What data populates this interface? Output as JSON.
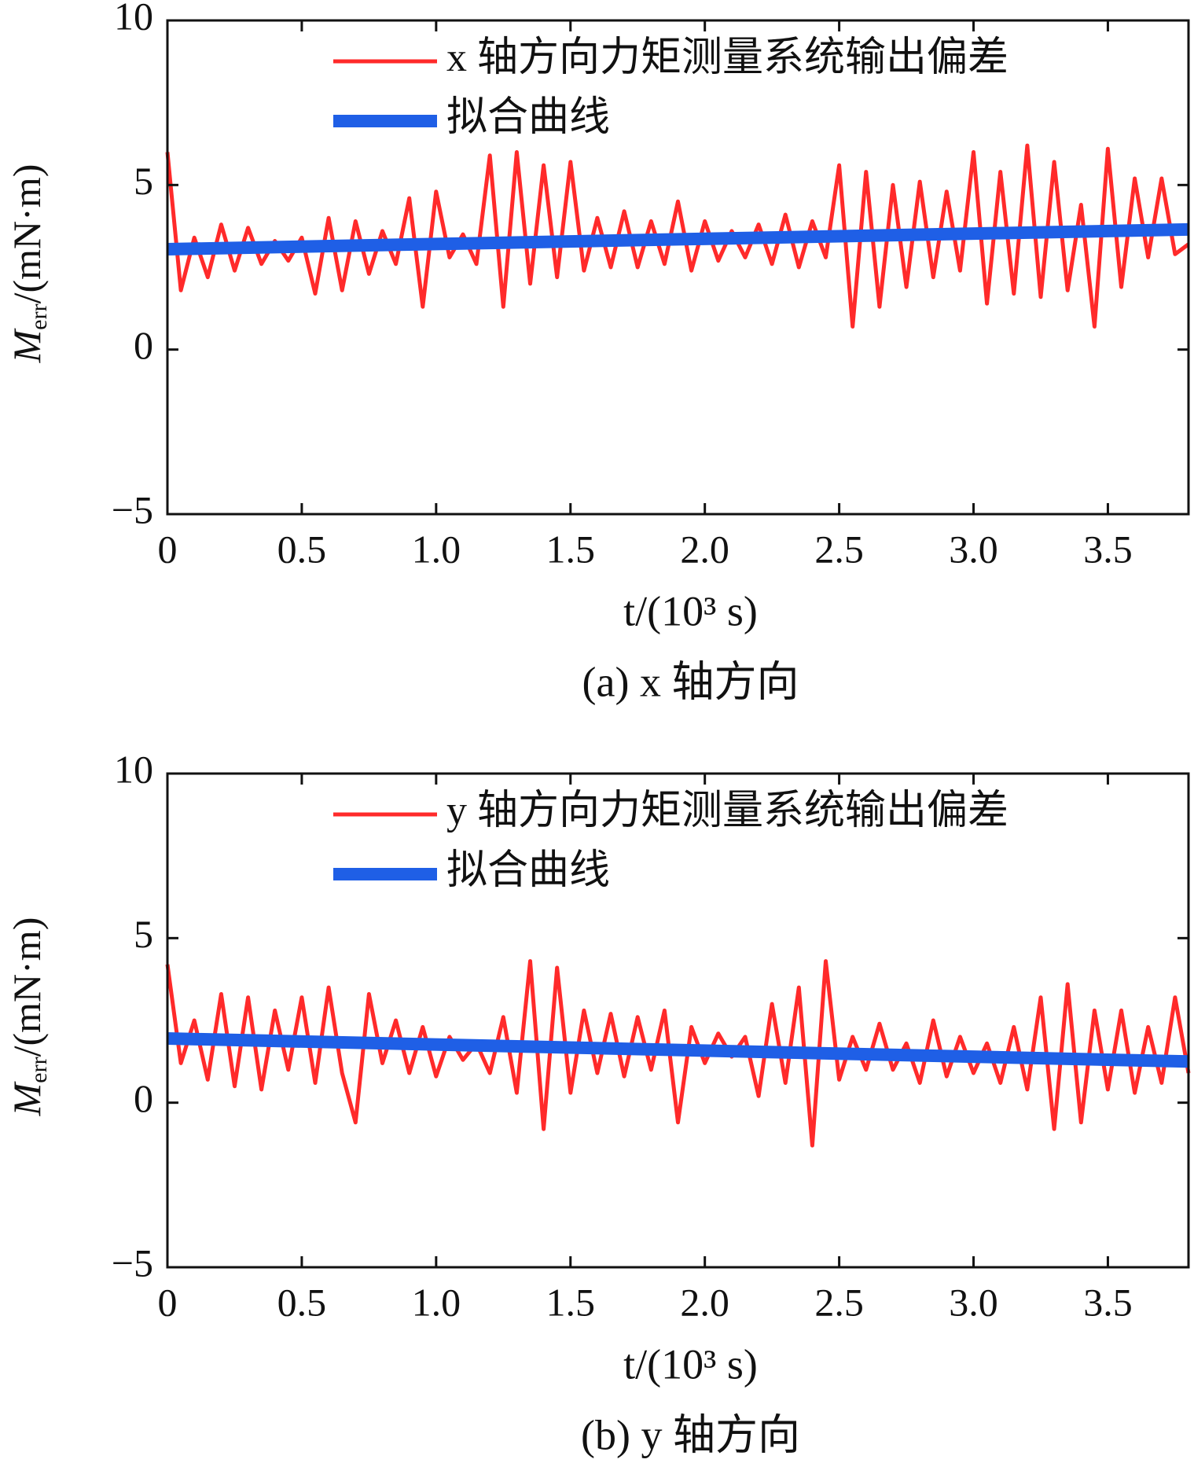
{
  "chart_data": [
    {
      "type": "line",
      "caption": "(a) x 轴方向",
      "xlabel": "t/(10³ s)",
      "ylabel": {
        "symbol": "M",
        "subscript": "err",
        "unit": "/(mN·m)"
      },
      "xlim": [
        0,
        3.8
      ],
      "ylim": [
        -5,
        10
      ],
      "xticks": [
        0,
        0.5,
        {
          "value": 1,
          "label": "1.0"
        },
        1.5,
        {
          "value": 2,
          "label": "2.0"
        },
        2.5,
        {
          "value": 3,
          "label": "3.0"
        },
        3.5
      ],
      "yticks": [
        {
          "value": -5,
          "label": "−5"
        },
        0,
        5,
        10
      ],
      "series": [
        {
          "name": "x 轴方向力矩测量系统输出偏差",
          "color": "#ff2a2a",
          "width": 5,
          "x": [
            0,
            0.05,
            0.1,
            0.15,
            0.2,
            0.25,
            0.3,
            0.35,
            0.4,
            0.45,
            0.5,
            0.55,
            0.6,
            0.65,
            0.7,
            0.75,
            0.8,
            0.85,
            0.9,
            0.95,
            1,
            1.05,
            1.1,
            1.15,
            1.2,
            1.25,
            1.3,
            1.35,
            1.4,
            1.45,
            1.5,
            1.55,
            1.6,
            1.65,
            1.7,
            1.75,
            1.8,
            1.85,
            1.9,
            1.95,
            2,
            2.05,
            2.1,
            2.15,
            2.2,
            2.25,
            2.3,
            2.35,
            2.4,
            2.45,
            2.5,
            2.55,
            2.6,
            2.65,
            2.7,
            2.75,
            2.8,
            2.85,
            2.9,
            2.95,
            3,
            3.05,
            3.1,
            3.15,
            3.2,
            3.25,
            3.3,
            3.35,
            3.4,
            3.45,
            3.5,
            3.55,
            3.6,
            3.65,
            3.7,
            3.75,
            3.8
          ],
          "values": [
            6.0,
            1.8,
            3.4,
            2.2,
            3.8,
            2.4,
            3.7,
            2.6,
            3.3,
            2.7,
            3.4,
            1.7,
            4.0,
            1.8,
            3.9,
            2.3,
            3.6,
            2.6,
            4.6,
            1.3,
            4.8,
            2.8,
            3.5,
            2.6,
            5.9,
            1.3,
            6.0,
            2.0,
            5.6,
            2.2,
            5.7,
            2.4,
            4.0,
            2.5,
            4.2,
            2.5,
            3.9,
            2.6,
            4.5,
            2.4,
            3.9,
            2.7,
            3.6,
            2.8,
            3.8,
            2.6,
            4.1,
            2.5,
            3.9,
            2.8,
            5.6,
            0.7,
            5.4,
            1.3,
            5.0,
            1.9,
            5.1,
            2.2,
            4.8,
            2.4,
            6.0,
            1.4,
            5.4,
            1.7,
            6.2,
            1.6,
            5.7,
            1.8,
            4.4,
            0.7,
            6.1,
            1.9,
            5.2,
            2.8,
            5.2,
            2.9,
            3.2
          ]
        },
        {
          "name": "拟合曲线",
          "color": "#1f5fe6",
          "width": 16,
          "x": [
            0,
            3.8
          ],
          "values": [
            3.05,
            3.65
          ]
        }
      ]
    },
    {
      "type": "line",
      "caption": "(b) y 轴方向",
      "xlabel": "t/(10³ s)",
      "ylabel": {
        "symbol": "M",
        "subscript": "err",
        "unit": "/(mN·m)"
      },
      "xlim": [
        0,
        3.8
      ],
      "ylim": [
        -5,
        10
      ],
      "xticks": [
        0,
        0.5,
        {
          "value": 1,
          "label": "1.0"
        },
        1.5,
        {
          "value": 2,
          "label": "2.0"
        },
        2.5,
        {
          "value": 3,
          "label": "3.0"
        },
        3.5
      ],
      "yticks": [
        {
          "value": -5,
          "label": "−5"
        },
        0,
        5,
        10
      ],
      "series": [
        {
          "name": "y 轴方向力矩测量系统输出偏差",
          "color": "#ff2a2a",
          "width": 5,
          "x": [
            0,
            0.05,
            0.1,
            0.15,
            0.2,
            0.25,
            0.3,
            0.35,
            0.4,
            0.45,
            0.5,
            0.55,
            0.6,
            0.65,
            0.7,
            0.75,
            0.8,
            0.85,
            0.9,
            0.95,
            1,
            1.05,
            1.1,
            1.15,
            1.2,
            1.25,
            1.3,
            1.35,
            1.4,
            1.45,
            1.5,
            1.55,
            1.6,
            1.65,
            1.7,
            1.75,
            1.8,
            1.85,
            1.9,
            1.95,
            2,
            2.05,
            2.1,
            2.15,
            2.2,
            2.25,
            2.3,
            2.35,
            2.4,
            2.45,
            2.5,
            2.55,
            2.6,
            2.65,
            2.7,
            2.75,
            2.8,
            2.85,
            2.9,
            2.95,
            3,
            3.05,
            3.1,
            3.15,
            3.2,
            3.25,
            3.3,
            3.35,
            3.4,
            3.45,
            3.5,
            3.55,
            3.6,
            3.65,
            3.7,
            3.75,
            3.8
          ],
          "values": [
            4.2,
            1.2,
            2.5,
            0.7,
            3.3,
            0.5,
            3.2,
            0.4,
            2.8,
            1.0,
            3.2,
            0.6,
            3.5,
            0.9,
            -0.6,
            3.3,
            1.2,
            2.5,
            0.9,
            2.3,
            0.8,
            2.0,
            1.3,
            1.8,
            0.9,
            2.6,
            0.3,
            4.3,
            -0.8,
            4.1,
            0.3,
            2.8,
            0.9,
            2.7,
            0.8,
            2.6,
            1.0,
            2.8,
            -0.6,
            2.3,
            1.2,
            2.1,
            1.4,
            2.0,
            0.2,
            3.0,
            0.6,
            3.5,
            -1.3,
            4.3,
            0.7,
            2.0,
            1.0,
            2.4,
            1.0,
            1.8,
            0.6,
            2.5,
            0.8,
            2.0,
            0.9,
            1.8,
            0.6,
            2.3,
            0.4,
            3.2,
            -0.8,
            3.6,
            -0.6,
            2.8,
            0.4,
            2.8,
            0.3,
            2.3,
            0.6,
            3.2,
            0.9
          ]
        },
        {
          "name": "拟合曲线",
          "color": "#1f5fe6",
          "width": 16,
          "x": [
            0,
            3.8
          ],
          "values": [
            1.95,
            1.25
          ]
        }
      ]
    }
  ]
}
